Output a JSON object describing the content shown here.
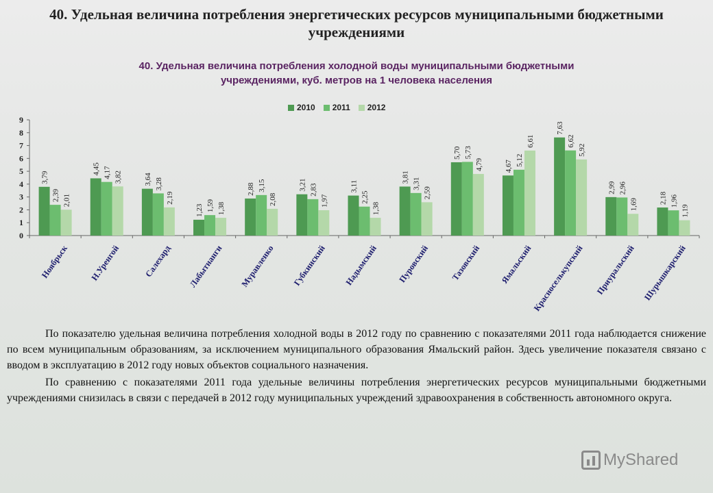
{
  "slide_title": "40. Удельная величина потребления энергетических ресурсов муниципальными бюджетными учреждениями",
  "colors": {
    "2010": "#4e9a52",
    "2011": "#6cbd6f",
    "2012": "#b4d8a9"
  },
  "chart_data": {
    "type": "bar",
    "title_line1": "40. Удельная величина потребления холодной воды муниципальными бюджетными",
    "title_line2": "учреждениями, куб. метров на 1 человека населения",
    "categories": [
      "Ноябрьск",
      "Н.Уренгой",
      "Салехард",
      "Лабытнанги",
      "Муравленко",
      "Губкинский",
      "Надымский",
      "Пуровский",
      "Тазовский",
      "Ямальский",
      "Красноселькупский",
      "Приуральский",
      "Шурышкарский"
    ],
    "series": [
      {
        "name": "2010",
        "values": [
          3.79,
          4.45,
          3.64,
          1.23,
          2.88,
          3.21,
          3.11,
          3.81,
          5.7,
          4.67,
          7.63,
          2.99,
          2.18
        ]
      },
      {
        "name": "2011",
        "values": [
          2.39,
          4.17,
          3.28,
          1.59,
          3.15,
          2.83,
          2.25,
          3.31,
          5.73,
          5.12,
          6.62,
          2.96,
          1.96
        ]
      },
      {
        "name": "2012",
        "values": [
          2.01,
          3.82,
          2.19,
          1.38,
          2.08,
          1.97,
          1.38,
          2.59,
          4.79,
          6.61,
          5.92,
          1.69,
          1.19
        ]
      }
    ],
    "value_labels": [
      [
        "3,79",
        "4,45",
        "3,64",
        "1,23",
        "2,88",
        "3,21",
        "3,11",
        "3,81",
        "5,70",
        "4,67",
        "7,63",
        "2,99",
        "2,18"
      ],
      [
        "2,39",
        "4,17",
        "3,28",
        "1,59",
        "3,15",
        "2,83",
        "2,25",
        "3,31",
        "5,73",
        "5,12",
        "6,62",
        "2,96",
        "1,96"
      ],
      [
        "2,01",
        "3,82",
        "2,19",
        "1,38",
        "2,08",
        "1,97",
        "1,38",
        "2,59",
        "4,79",
        "6,61",
        "5,92",
        "1,69",
        "1,19"
      ]
    ],
    "ylim": [
      0,
      9
    ],
    "yticks": [
      "0",
      "1",
      "2",
      "3",
      "4",
      "5",
      "6",
      "7",
      "8",
      "9"
    ],
    "legend_position": "top-center",
    "grid": false
  },
  "paragraphs": [
    "По показателю удельная величина потребления холодной воды в 2012 году по сравнению с показателями 2011 года наблюдается снижение по всем муниципальным образованиям, за исключением муниципального образования Ямальский район. Здесь увеличение показателя связано с вводом в эксплуатацию в 2012 году новых объектов социального назначения.",
    "По сравнению с показателями 2011 года удельные величины потребления энергетических ресурсов муниципальными бюджетными учреждениями снизилась в связи с передачей в 2012 году муниципальных учреждений здравоохранения в собственность автономного округа."
  ],
  "watermark": {
    "text": "MyShared",
    "icon": "myshared-logo-icon"
  }
}
